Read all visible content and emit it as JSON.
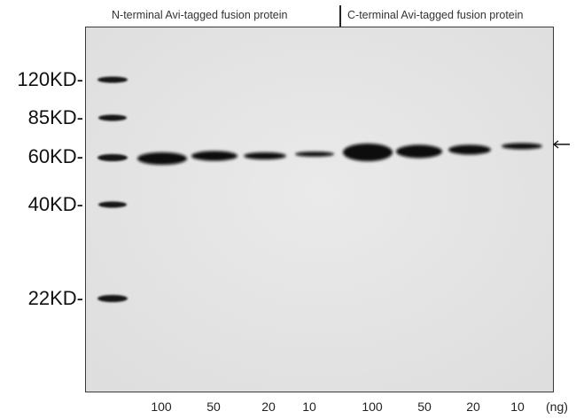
{
  "groups": {
    "n_terminal": "N-terminal Avi-tagged fusion protein",
    "c_terminal": "C-terminal Avi-tagged fusion protein"
  },
  "markers": [
    "120KD-",
    "85KD-",
    "60KD-",
    "40KD-",
    "22KD-"
  ],
  "lanes": [
    "100",
    "50",
    "20",
    "10",
    "100",
    "50",
    "20",
    "10"
  ],
  "unit": "(ng)",
  "arrow_glyph": "arrow-left-icon",
  "colors": {
    "background": "#e6e6e6",
    "band": "#0a0a0a"
  }
}
